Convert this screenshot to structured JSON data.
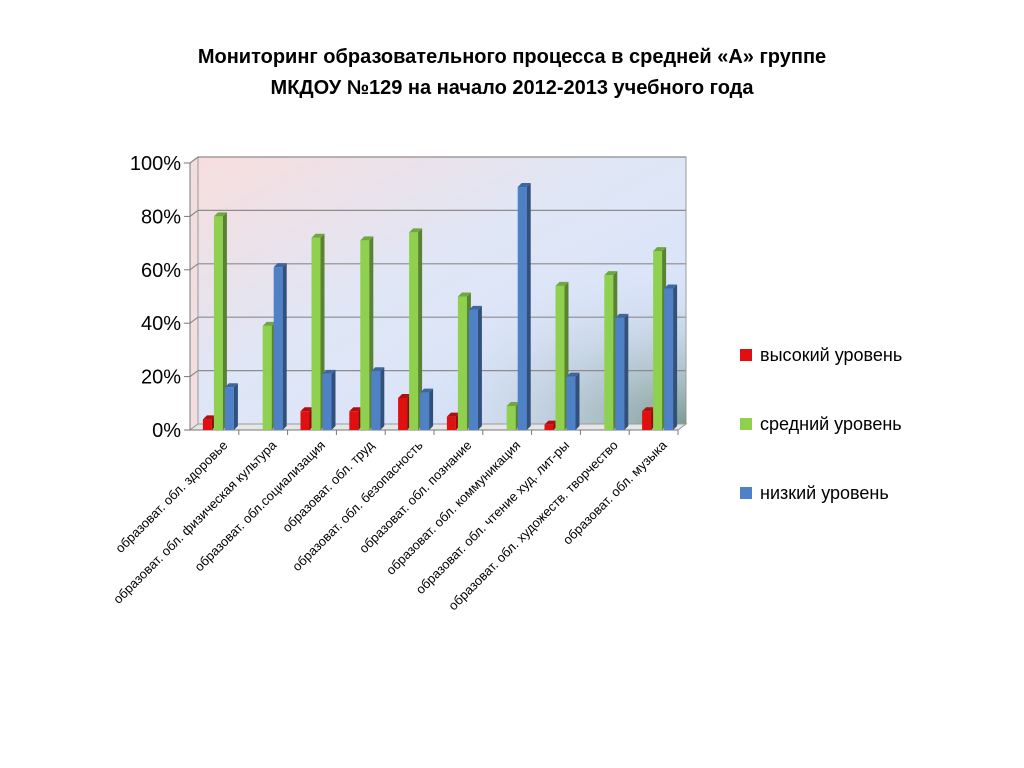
{
  "chart_data": {
    "type": "bar",
    "title": [
      "Мониторинг образовательного процесса в средней «А» группе",
      "МКДОУ №129 на начало 2012-2013 учебного года"
    ],
    "categories": [
      "образоват. обл. здоровье",
      "образоват. обл. физическая культура",
      "образоват. обл.социализация",
      "образоват. обл. труд",
      "образоват. обл. безопасность",
      "образоват. обл. познание",
      "образоват. обл. коммуникация",
      "образоват. обл. чтение худ. лит-ры",
      "образоват. обл. художеств. творчество",
      "образоват. обл. музыка"
    ],
    "series": [
      {
        "name": "высокий уровень",
        "color": "#e01010",
        "values": [
          4,
          0,
          7,
          7,
          12,
          5,
          0,
          2,
          0,
          7
        ]
      },
      {
        "name": "средний уровень",
        "color": "#8fd14f",
        "values": [
          80,
          39,
          72,
          71,
          74,
          50,
          9,
          54,
          58,
          67
        ]
      },
      {
        "name": "низкий уровень",
        "color": "#4f81c7",
        "values": [
          16,
          61,
          21,
          22,
          14,
          45,
          91,
          20,
          42,
          53
        ]
      }
    ],
    "yticks": [
      "0%",
      "20%",
      "40%",
      "60%",
      "80%",
      "100%"
    ],
    "ylim": [
      0,
      100
    ],
    "grid": true,
    "legend_position": "right"
  }
}
